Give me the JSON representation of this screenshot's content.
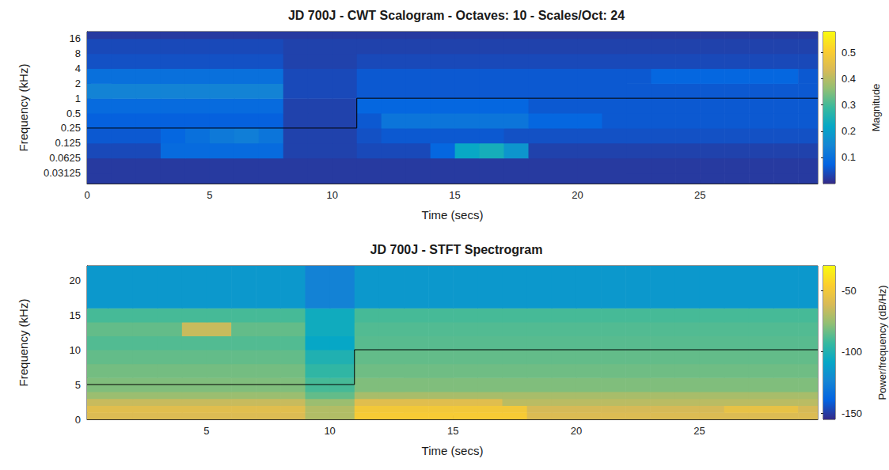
{
  "chart_data": [
    {
      "type": "heatmap",
      "title": "JD 700J - CWT Scalogram - Octaves: 10 - Scales/Oct: 24",
      "x_label": "Time (secs)",
      "y_label": "Frequency (kHz)",
      "log": "y",
      "grid": false,
      "xlim": [
        0,
        29.8
      ],
      "xticks": [
        0,
        5,
        10,
        15,
        20,
        25
      ],
      "ylim": [
        0.019,
        22.05
      ],
      "yticks": [
        0.03125,
        0.0625,
        0.125,
        0.25,
        0.5,
        1,
        2,
        4,
        8,
        16
      ],
      "x_bins": [
        0,
        1,
        2,
        3,
        4,
        5,
        6,
        7,
        8,
        9,
        10,
        11,
        12,
        13,
        14,
        15,
        16,
        17,
        18,
        19,
        20,
        21,
        22,
        23,
        24,
        25,
        26,
        27,
        28,
        29,
        29.8
      ],
      "y_bins": [
        0.019,
        0.03125,
        0.0625,
        0.125,
        0.25,
        0.5,
        1,
        2,
        4,
        8,
        16,
        22.05
      ],
      "values": [
        [
          0.02,
          0.02,
          0.02,
          0.02,
          0.02,
          0.02,
          0.02,
          0.02,
          0.02,
          0.02,
          0.02,
          0.02,
          0.02,
          0.02,
          0.02,
          0.02,
          0.02,
          0.02,
          0.02,
          0.02,
          0.02,
          0.02,
          0.02,
          0.02,
          0.02,
          0.02,
          0.02,
          0.02,
          0.02,
          0.02
        ],
        [
          0.02,
          0.02,
          0.02,
          0.02,
          0.02,
          0.02,
          0.02,
          0.02,
          0.02,
          0.02,
          0.02,
          0.02,
          0.02,
          0.02,
          0.02,
          0.02,
          0.02,
          0.02,
          0.02,
          0.02,
          0.02,
          0.02,
          0.02,
          0.02,
          0.02,
          0.02,
          0.02,
          0.02,
          0.02,
          0.02
        ],
        [
          0.04,
          0.04,
          0.04,
          0.09,
          0.09,
          0.09,
          0.09,
          0.09,
          0.03,
          0.03,
          0.03,
          0.04,
          0.04,
          0.04,
          0.08,
          0.22,
          0.24,
          0.18,
          0.03,
          0.03,
          0.03,
          0.03,
          0.03,
          0.03,
          0.03,
          0.03,
          0.03,
          0.03,
          0.03,
          0.03
        ],
        [
          0.06,
          0.06,
          0.06,
          0.08,
          0.1,
          0.12,
          0.13,
          0.11,
          0.03,
          0.03,
          0.03,
          0.05,
          0.06,
          0.06,
          0.06,
          0.06,
          0.06,
          0.05,
          0.05,
          0.05,
          0.05,
          0.05,
          0.05,
          0.05,
          0.05,
          0.05,
          0.05,
          0.05,
          0.05,
          0.05
        ],
        [
          0.07,
          0.07,
          0.07,
          0.07,
          0.07,
          0.07,
          0.07,
          0.07,
          0.03,
          0.03,
          0.03,
          0.06,
          0.11,
          0.11,
          0.11,
          0.11,
          0.11,
          0.11,
          0.08,
          0.08,
          0.08,
          0.06,
          0.06,
          0.06,
          0.06,
          0.06,
          0.06,
          0.06,
          0.06,
          0.06
        ],
        [
          0.09,
          0.09,
          0.09,
          0.09,
          0.09,
          0.09,
          0.09,
          0.09,
          0.03,
          0.03,
          0.03,
          0.08,
          0.08,
          0.08,
          0.08,
          0.08,
          0.08,
          0.08,
          0.06,
          0.06,
          0.06,
          0.06,
          0.06,
          0.06,
          0.06,
          0.06,
          0.06,
          0.06,
          0.06,
          0.06
        ],
        [
          0.14,
          0.14,
          0.14,
          0.14,
          0.14,
          0.14,
          0.14,
          0.14,
          0.04,
          0.04,
          0.04,
          0.06,
          0.06,
          0.06,
          0.06,
          0.06,
          0.06,
          0.06,
          0.06,
          0.06,
          0.06,
          0.06,
          0.06,
          0.06,
          0.06,
          0.06,
          0.06,
          0.06,
          0.06,
          0.06
        ],
        [
          0.1,
          0.1,
          0.1,
          0.1,
          0.1,
          0.1,
          0.1,
          0.1,
          0.04,
          0.04,
          0.04,
          0.06,
          0.06,
          0.06,
          0.06,
          0.06,
          0.06,
          0.06,
          0.06,
          0.06,
          0.06,
          0.06,
          0.06,
          0.08,
          0.08,
          0.08,
          0.08,
          0.08,
          0.08,
          0.06
        ],
        [
          0.05,
          0.05,
          0.05,
          0.05,
          0.05,
          0.05,
          0.05,
          0.05,
          0.03,
          0.03,
          0.03,
          0.04,
          0.04,
          0.04,
          0.04,
          0.04,
          0.04,
          0.04,
          0.04,
          0.04,
          0.04,
          0.04,
          0.04,
          0.04,
          0.04,
          0.04,
          0.04,
          0.04,
          0.04,
          0.04
        ],
        [
          0.04,
          0.04,
          0.04,
          0.04,
          0.04,
          0.04,
          0.04,
          0.04,
          0.03,
          0.03,
          0.03,
          0.03,
          0.03,
          0.03,
          0.03,
          0.03,
          0.03,
          0.03,
          0.03,
          0.03,
          0.03,
          0.03,
          0.03,
          0.03,
          0.03,
          0.03,
          0.03,
          0.03,
          0.03,
          0.03
        ],
        [
          0.02,
          0.02,
          0.02,
          0.02,
          0.02,
          0.02,
          0.02,
          0.02,
          0.02,
          0.02,
          0.02,
          0.02,
          0.02,
          0.02,
          0.02,
          0.02,
          0.02,
          0.02,
          0.02,
          0.02,
          0.02,
          0.02,
          0.02,
          0.02,
          0.02,
          0.02,
          0.02,
          0.02,
          0.02,
          0.02
        ]
      ],
      "colorbar": {
        "label": "Magnitude",
        "lim": [
          0,
          0.58
        ],
        "ticks": [
          0.1,
          0.2,
          0.3,
          0.4,
          0.5
        ]
      },
      "series": [
        {
          "type": "line",
          "color": "#000000",
          "x": [
            0,
            11,
            11,
            29.8
          ],
          "y": [
            0.25,
            0.25,
            1,
            1
          ]
        }
      ]
    },
    {
      "type": "heatmap",
      "title": "JD 700J - STFT Spectrogram",
      "x_label": "Time (secs)",
      "y_label": "Frequency (kHz)",
      "grid": false,
      "xlim": [
        0.15,
        29.8
      ],
      "xticks": [
        5,
        10,
        15,
        20,
        25
      ],
      "ylim": [
        0,
        22.05
      ],
      "yticks": [
        0,
        5,
        10,
        15,
        20
      ],
      "x_bins": [
        0.15,
        1,
        2,
        3,
        4,
        5,
        6,
        7,
        8,
        9,
        10,
        11,
        12,
        13,
        14,
        15,
        16,
        17,
        18,
        19,
        20,
        21,
        22,
        23,
        24,
        25,
        26,
        27,
        28,
        29,
        29.8
      ],
      "y_bins": [
        0,
        1,
        2,
        3,
        4,
        6,
        8,
        10,
        12,
        14,
        16,
        22.05
      ],
      "values": [
        [
          -60,
          -60,
          -60,
          -60,
          -60,
          -60,
          -60,
          -60,
          -60,
          -70,
          -70,
          -48,
          -48,
          -48,
          -48,
          -48,
          -48,
          -48,
          -60,
          -60,
          -60,
          -60,
          -60,
          -60,
          -60,
          -60,
          -60,
          -60,
          -60,
          -60
        ],
        [
          -58,
          -58,
          -58,
          -58,
          -58,
          -58,
          -58,
          -58,
          -58,
          -70,
          -70,
          -50,
          -50,
          -50,
          -50,
          -50,
          -50,
          -50,
          -62,
          -62,
          -62,
          -62,
          -62,
          -62,
          -62,
          -62,
          -55,
          -55,
          -55,
          -62
        ],
        [
          -65,
          -65,
          -65,
          -65,
          -65,
          -65,
          -65,
          -65,
          -65,
          -75,
          -75,
          -58,
          -58,
          -58,
          -58,
          -58,
          -58,
          -68,
          -68,
          -68,
          -68,
          -68,
          -68,
          -68,
          -68,
          -68,
          -68,
          -68,
          -68,
          -68
        ],
        [
          -75,
          -75,
          -75,
          -75,
          -75,
          -75,
          -75,
          -75,
          -75,
          -85,
          -85,
          -72,
          -72,
          -72,
          -72,
          -72,
          -72,
          -72,
          -72,
          -72,
          -72,
          -72,
          -72,
          -72,
          -72,
          -72,
          -72,
          -72,
          -72,
          -72
        ],
        [
          -80,
          -80,
          -80,
          -80,
          -80,
          -80,
          -80,
          -80,
          -80,
          -90,
          -90,
          -80,
          -80,
          -80,
          -80,
          -80,
          -80,
          -80,
          -80,
          -80,
          -80,
          -80,
          -80,
          -80,
          -80,
          -80,
          -80,
          -80,
          -80,
          -80
        ],
        [
          -82,
          -82,
          -82,
          -82,
          -82,
          -82,
          -82,
          -82,
          -82,
          -95,
          -95,
          -83,
          -83,
          -83,
          -83,
          -83,
          -83,
          -83,
          -83,
          -83,
          -83,
          -83,
          -83,
          -83,
          -83,
          -83,
          -83,
          -83,
          -83,
          -83
        ],
        [
          -85,
          -85,
          -85,
          -85,
          -85,
          -85,
          -85,
          -85,
          -85,
          -100,
          -100,
          -85,
          -85,
          -85,
          -85,
          -85,
          -85,
          -85,
          -85,
          -85,
          -85,
          -85,
          -85,
          -85,
          -85,
          -85,
          -85,
          -85,
          -85,
          -85
        ],
        [
          -88,
          -88,
          -88,
          -88,
          -88,
          -88,
          -88,
          -88,
          -88,
          -108,
          -108,
          -87,
          -87,
          -87,
          -87,
          -87,
          -87,
          -87,
          -87,
          -87,
          -87,
          -87,
          -87,
          -87,
          -87,
          -87,
          -87,
          -87,
          -87,
          -87
        ],
        [
          -85,
          -85,
          -85,
          -85,
          -65,
          -65,
          -85,
          -85,
          -85,
          -105,
          -105,
          -88,
          -88,
          -88,
          -88,
          -88,
          -88,
          -88,
          -88,
          -88,
          -88,
          -88,
          -88,
          -88,
          -88,
          -88,
          -88,
          -88,
          -88,
          -88
        ],
        [
          -90,
          -90,
          -90,
          -90,
          -90,
          -90,
          -90,
          -90,
          -90,
          -105,
          -105,
          -90,
          -90,
          -90,
          -90,
          -90,
          -90,
          -90,
          -90,
          -90,
          -90,
          -90,
          -90,
          -90,
          -90,
          -90,
          -90,
          -90,
          -90,
          -90
        ],
        [
          -115,
          -115,
          -115,
          -115,
          -115,
          -115,
          -115,
          -115,
          -115,
          -125,
          -125,
          -115,
          -115,
          -115,
          -115,
          -115,
          -115,
          -115,
          -115,
          -115,
          -115,
          -115,
          -115,
          -115,
          -115,
          -115,
          -115,
          -115,
          -115,
          -115
        ]
      ],
      "colorbar": {
        "label": "Power/frequency (dB/Hz)",
        "lim": [
          -155,
          -30
        ],
        "ticks": [
          -150,
          -100,
          -50
        ]
      },
      "series": [
        {
          "type": "line",
          "color": "#000000",
          "x": [
            0.15,
            11,
            11,
            29.8
          ],
          "y": [
            5,
            5,
            10,
            10
          ]
        }
      ]
    }
  ]
}
